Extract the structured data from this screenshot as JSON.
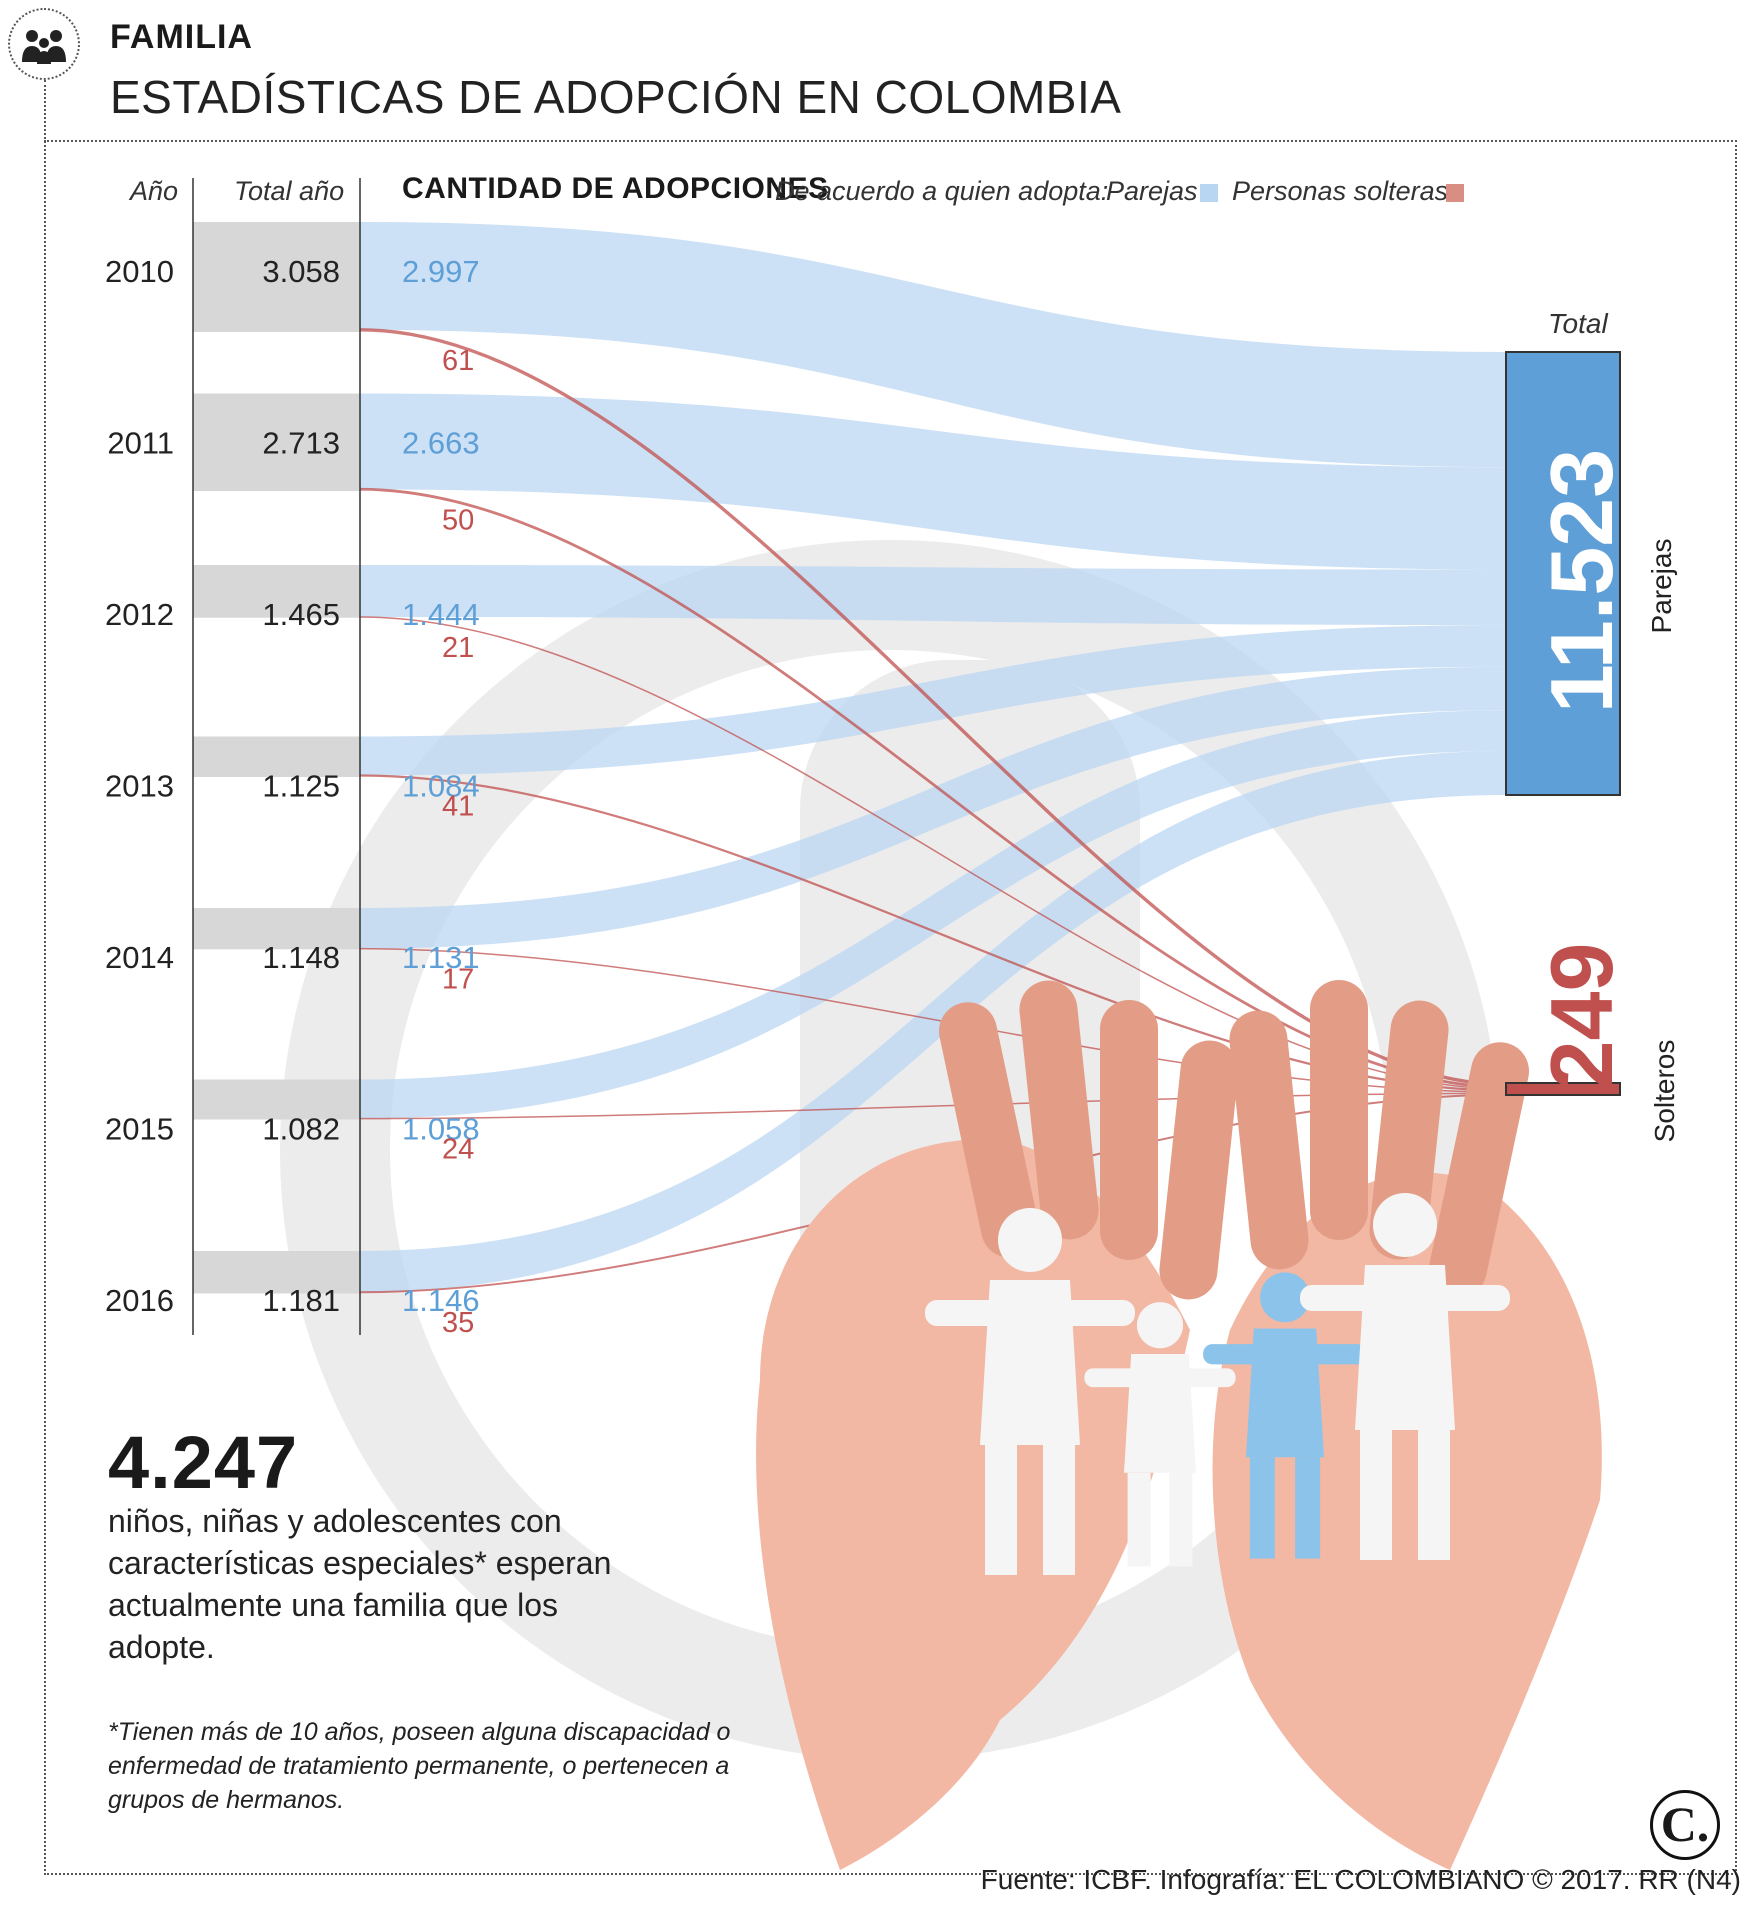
{
  "header": {
    "section": "FAMILIA",
    "title": "ESTADÍSTICAS DE ADOPCIÓN EN COLOMBIA"
  },
  "columns": {
    "year": "Año",
    "total_year": "Total año",
    "heading": "CANTIDAD DE ADOPCIONES",
    "legend_intro": "De acuerdo a quien adopta:",
    "legend_couples": "Parejas",
    "legend_singles": "Personas solteras"
  },
  "colors": {
    "couples": "#b8d6f2",
    "couples_dark": "#5d9fd6",
    "singles": "#d98e84",
    "singles_dark": "#c0504d",
    "row_band": "#d7d7d8",
    "watermark": "#ececec"
  },
  "chart_data": {
    "type": "sankey",
    "title": "CANTIDAD DE ADOPCIONES",
    "years": [
      "2010",
      "2011",
      "2012",
      "2013",
      "2014",
      "2015",
      "2016"
    ],
    "year_totals": [
      "3.058",
      "2.713",
      "1.465",
      "1.125",
      "1.148",
      "1.082",
      "1.181"
    ],
    "series": [
      {
        "name": "Parejas",
        "values": [
          2997,
          2663,
          1444,
          1084,
          1131,
          1058,
          1146
        ],
        "labels": [
          "2.997",
          "2.663",
          "1.444",
          "1.084",
          "1.131",
          "1.058",
          "1.146"
        ]
      },
      {
        "name": "Personas solteras",
        "values": [
          61,
          50,
          21,
          41,
          17,
          24,
          35
        ],
        "labels": [
          "61",
          "50",
          "21",
          "41",
          "17",
          "24",
          "35"
        ]
      }
    ],
    "totals": {
      "label": "Total",
      "couples": "11.523",
      "couples_label": "Parejas",
      "singles": "249",
      "singles_label": "Solteros"
    }
  },
  "stat": {
    "value": "4.247",
    "description": "niños, niñas y adolescentes con características especiales* esperan actualmente una familia que los adopte."
  },
  "footnote": "*Tienen más de 10 años, poseen alguna discapacidad o enfermedad de tratamiento permanente, o pertenecen a grupos de hermanos.",
  "source": "Fuente: ICBF. Infografía: EL COLOMBIANO © 2017. RR (N4)",
  "logo_text": "C."
}
